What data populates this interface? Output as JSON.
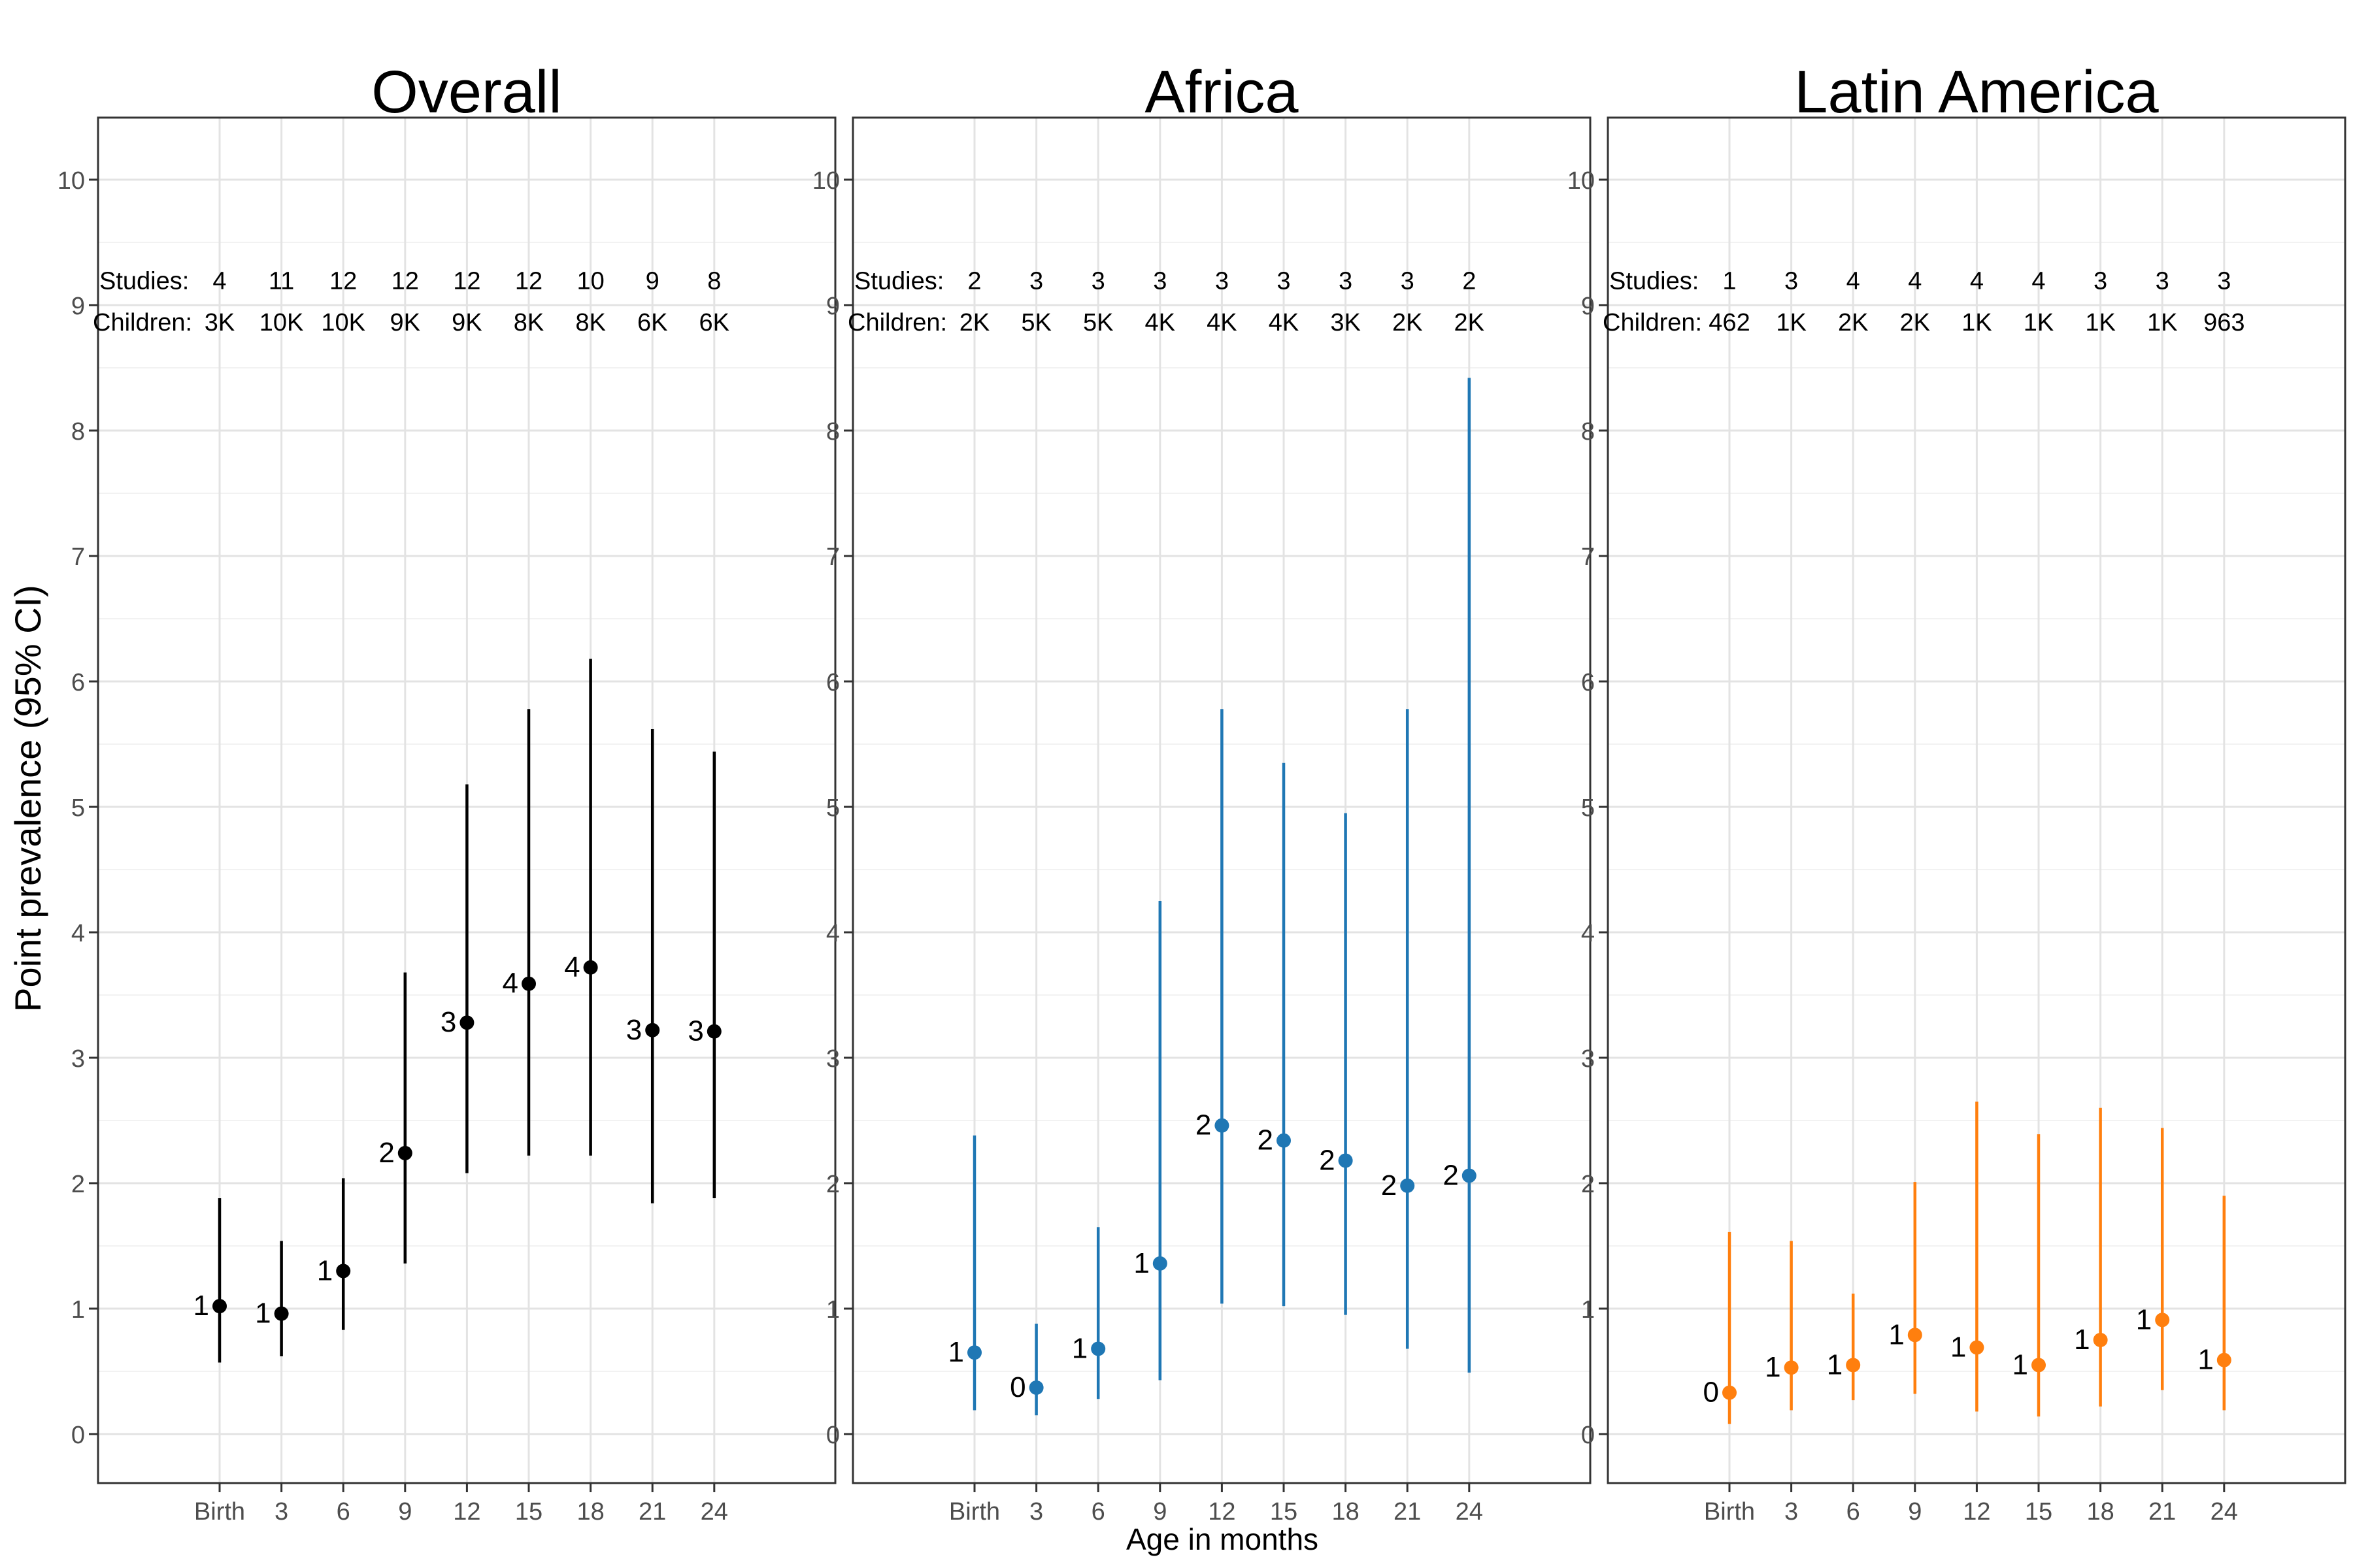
{
  "chart_data": {
    "type": "scatter",
    "ylabel": "Point prevalence (95% CI)",
    "xlabel": "Age in months",
    "x_categories": [
      "Birth",
      "3",
      "6",
      "9",
      "12",
      "15",
      "18",
      "21",
      "24"
    ],
    "ylim": [
      -0.4,
      10.5
    ],
    "y_ticks": [
      0,
      1,
      2,
      3,
      4,
      5,
      6,
      7,
      8,
      9,
      10
    ],
    "grid": true,
    "studies_label": "Studies:",
    "children_label": "Children:",
    "panels": [
      {
        "title": "Overall",
        "color": "#000000",
        "values": [
          1.02,
          0.96,
          1.3,
          2.24,
          3.28,
          3.59,
          3.72,
          3.22,
          3.21
        ],
        "ci_lower": [
          0.57,
          0.62,
          0.83,
          1.36,
          2.08,
          2.22,
          2.22,
          1.84,
          1.88
        ],
        "ci_upper": [
          1.88,
          1.54,
          2.04,
          3.68,
          5.18,
          5.78,
          6.18,
          5.62,
          5.44
        ],
        "point_labels": [
          "1",
          "1",
          "1",
          "2",
          "3",
          "4",
          "4",
          "3",
          "3"
        ],
        "studies": [
          "4",
          "11",
          "12",
          "12",
          "12",
          "12",
          "10",
          "9",
          "8"
        ],
        "children": [
          "3K",
          "10K",
          "10K",
          "9K",
          "9K",
          "8K",
          "8K",
          "6K",
          "6K"
        ]
      },
      {
        "title": "Africa",
        "color": "#1f77b4",
        "values": [
          0.65,
          0.37,
          0.68,
          1.36,
          2.46,
          2.34,
          2.18,
          1.98,
          2.06
        ],
        "ci_lower": [
          0.19,
          0.15,
          0.28,
          0.43,
          1.04,
          1.02,
          0.95,
          0.68,
          0.49
        ],
        "ci_upper": [
          2.38,
          0.88,
          1.65,
          4.25,
          5.78,
          5.35,
          4.95,
          5.78,
          8.42
        ],
        "point_labels": [
          "1",
          "0",
          "1",
          "1",
          "2",
          "2",
          "2",
          "2",
          "2"
        ],
        "studies": [
          "2",
          "3",
          "3",
          "3",
          "3",
          "3",
          "3",
          "3",
          "2"
        ],
        "children": [
          "2K",
          "5K",
          "5K",
          "4K",
          "4K",
          "4K",
          "3K",
          "2K",
          "2K"
        ]
      },
      {
        "title": "Latin America",
        "color": "#ff7f0e",
        "values": [
          0.33,
          0.53,
          0.55,
          0.79,
          0.69,
          0.55,
          0.75,
          0.91,
          0.59
        ],
        "ci_lower": [
          0.08,
          0.19,
          0.27,
          0.32,
          0.18,
          0.14,
          0.22,
          0.35,
          0.19
        ],
        "ci_upper": [
          1.61,
          1.54,
          1.12,
          2.01,
          2.65,
          2.39,
          2.6,
          2.44,
          1.9
        ],
        "point_labels": [
          "0",
          "1",
          "1",
          "1",
          "1",
          "1",
          "1",
          "1",
          "1"
        ],
        "studies": [
          "1",
          "3",
          "4",
          "4",
          "4",
          "4",
          "3",
          "3",
          "3"
        ],
        "children": [
          "462",
          "1K",
          "2K",
          "2K",
          "1K",
          "1K",
          "1K",
          "1K",
          "963"
        ]
      }
    ]
  }
}
